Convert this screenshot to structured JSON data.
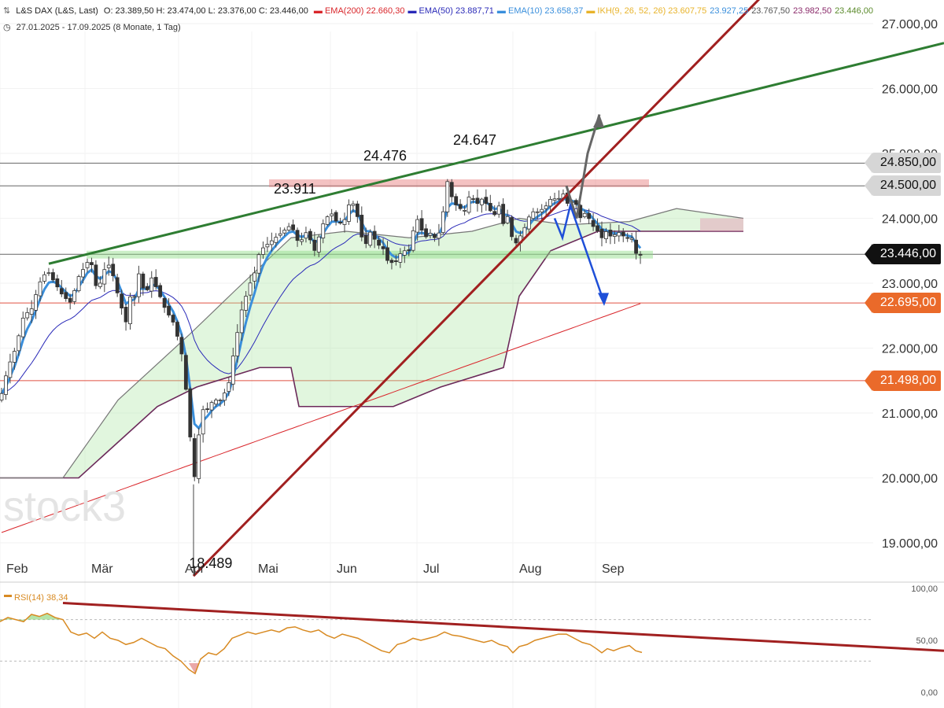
{
  "header": {
    "instrument": "L&S DAX (L&S, Last)",
    "ohlc": "O: 23.389,50  H: 23.474,00  L: 23.376,00  C: 23.446,00",
    "indicators": [
      {
        "label": "EMA(200)",
        "value": "22.660,30",
        "color": "#d9262b"
      },
      {
        "label": "EMA(50)",
        "value": "23.887,71",
        "color": "#2a2ab8"
      },
      {
        "label": "EMA(10)",
        "value": "23.658,37",
        "color": "#3a8fdc"
      },
      {
        "label": "IKH(9, 26, 52, 26)",
        "value": "23.607,75",
        "color": "#e8b32a"
      }
    ],
    "ikh_values": [
      {
        "value": "23.927,25",
        "color": "#3a8fdc"
      },
      {
        "value": "23.767,50",
        "color": "#555555"
      },
      {
        "value": "23.982,50",
        "color": "#8a2a6a"
      },
      {
        "value": "23.446,00",
        "color": "#5a8a2a"
      }
    ],
    "period": "27.01.2025 - 17.09.2025  (8 Monate, 1 Tag)"
  },
  "watermark": "stock3",
  "chart_data": [
    {
      "type": "candlestick",
      "title": "L&S DAX (L&S, Last)",
      "x_labels": [
        "Feb",
        "Mär",
        "Apr",
        "Mai",
        "Jun",
        "Jul",
        "Aug",
        "Sep"
      ],
      "y_ticks": [
        "19.000,00",
        "20.000,00",
        "21.000,00",
        "22.000,00",
        "23.000,00",
        "24.000,00",
        "25.000,00",
        "26.000,00",
        "27.000,00"
      ],
      "ylim": [
        18700,
        27300
      ],
      "price_tags": [
        {
          "value": 24850,
          "label": "24.850,00",
          "style": "grey"
        },
        {
          "value": 24500,
          "label": "24.500,00",
          "style": "grey"
        },
        {
          "value": 23446,
          "label": "23.446,00",
          "style": "black"
        },
        {
          "value": 22695,
          "label": "22.695,00",
          "style": "orange"
        },
        {
          "value": 21498,
          "label": "21.498,00",
          "style": "orange"
        }
      ],
      "annotations": [
        {
          "text": "24.647",
          "x_frac": 0.48,
          "value": 24647
        },
        {
          "text": "24.476",
          "x_frac": 0.385,
          "value": 24476
        },
        {
          "text": "23.911",
          "x_frac": 0.29,
          "value": 23911
        },
        {
          "text": "18.489",
          "x_frac": 0.207,
          "value": 18489
        }
      ],
      "close_anchors": [
        [
          0,
          21200
        ],
        [
          10,
          21700
        ],
        [
          20,
          22000
        ],
        [
          30,
          22500
        ],
        [
          40,
          22600
        ],
        [
          50,
          23000
        ],
        [
          60,
          23200
        ],
        [
          70,
          23000
        ],
        [
          80,
          22800
        ],
        [
          90,
          22700
        ],
        [
          100,
          23100
        ],
        [
          110,
          23300
        ],
        [
          115,
          23400
        ],
        [
          120,
          23000
        ],
        [
          125,
          22900
        ],
        [
          132,
          23200
        ],
        [
          140,
          23300
        ],
        [
          148,
          22900
        ],
        [
          155,
          22600
        ],
        [
          160,
          22400
        ],
        [
          165,
          22800
        ],
        [
          170,
          22700
        ],
        [
          175,
          23200
        ],
        [
          180,
          23000
        ],
        [
          185,
          22800
        ],
        [
          192,
          23100
        ],
        [
          200,
          22900
        ],
        [
          210,
          22600
        ],
        [
          220,
          22400
        ],
        [
          230,
          22000
        ],
        [
          238,
          21200
        ],
        [
          242,
          20600
        ],
        [
          246,
          19800
        ],
        [
          250,
          20500
        ],
        [
          255,
          20800
        ],
        [
          260,
          21200
        ],
        [
          265,
          21000
        ],
        [
          270,
          21200
        ],
        [
          275,
          21200
        ],
        [
          280,
          21200
        ],
        [
          285,
          21300
        ],
        [
          290,
          21400
        ],
        [
          295,
          21800
        ],
        [
          300,
          22100
        ],
        [
          305,
          22500
        ],
        [
          310,
          22700
        ],
        [
          318,
          23000
        ],
        [
          325,
          23200
        ],
        [
          330,
          23500
        ],
        [
          340,
          23600
        ],
        [
          350,
          23700
        ],
        [
          360,
          23800
        ],
        [
          370,
          23900
        ],
        [
          380,
          23600
        ],
        [
          390,
          23800
        ],
        [
          400,
          23500
        ],
        [
          410,
          23900
        ],
        [
          420,
          24100
        ],
        [
          430,
          23900
        ],
        [
          440,
          24000
        ],
        [
          445,
          24300
        ],
        [
          450,
          24200
        ],
        [
          455,
          24000
        ],
        [
          460,
          23700
        ],
        [
          465,
          23600
        ],
        [
          470,
          23800
        ],
        [
          480,
          23600
        ],
        [
          490,
          23500
        ],
        [
          495,
          23200
        ],
        [
          500,
          23400
        ],
        [
          505,
          23300
        ],
        [
          510,
          23500
        ],
        [
          520,
          23500
        ],
        [
          525,
          23800
        ],
        [
          530,
          24000
        ],
        [
          540,
          23700
        ],
        [
          550,
          23800
        ],
        [
          555,
          23600
        ],
        [
          565,
          24200
        ],
        [
          568,
          24600
        ],
        [
          575,
          24300
        ],
        [
          580,
          24200
        ],
        [
          590,
          24100
        ],
        [
          598,
          24400
        ],
        [
          605,
          24200
        ],
        [
          612,
          24300
        ],
        [
          620,
          24200
        ],
        [
          628,
          24000
        ],
        [
          632,
          24300
        ],
        [
          640,
          23900
        ],
        [
          648,
          24100
        ],
        [
          652,
          23500
        ],
        [
          655,
          23600
        ],
        [
          660,
          23700
        ],
        [
          665,
          23800
        ],
        [
          675,
          24100
        ],
        [
          685,
          24100
        ],
        [
          695,
          24200
        ],
        [
          700,
          24300
        ],
        [
          710,
          24300
        ],
        [
          718,
          24400
        ],
        [
          722,
          24200
        ],
        [
          730,
          24300
        ],
        [
          738,
          24000
        ],
        [
          745,
          24100
        ],
        [
          752,
          23900
        ],
        [
          760,
          23800
        ],
        [
          765,
          23700
        ],
        [
          770,
          23800
        ],
        [
          778,
          23700
        ],
        [
          785,
          23800
        ],
        [
          795,
          23700
        ],
        [
          803,
          23700
        ],
        [
          810,
          23400
        ],
        [
          816,
          23446
        ]
      ]
    },
    {
      "type": "line",
      "title": "RSI(14)",
      "series_name": "RSI(14)",
      "last_value": "38,34",
      "y_ticks": [
        "0,00",
        "50,00",
        "100,00"
      ],
      "ylim": [
        0,
        100
      ],
      "points": [
        [
          0,
          68
        ],
        [
          10,
          72
        ],
        [
          20,
          70
        ],
        [
          30,
          68
        ],
        [
          40,
          75
        ],
        [
          50,
          73
        ],
        [
          60,
          76
        ],
        [
          70,
          72
        ],
        [
          80,
          70
        ],
        [
          90,
          58
        ],
        [
          100,
          55
        ],
        [
          110,
          57
        ],
        [
          120,
          52
        ],
        [
          130,
          58
        ],
        [
          140,
          52
        ],
        [
          150,
          50
        ],
        [
          160,
          46
        ],
        [
          170,
          48
        ],
        [
          180,
          52
        ],
        [
          190,
          48
        ],
        [
          200,
          44
        ],
        [
          210,
          42
        ],
        [
          220,
          35
        ],
        [
          230,
          30
        ],
        [
          240,
          22
        ],
        [
          248,
          18
        ],
        [
          255,
          32
        ],
        [
          265,
          38
        ],
        [
          275,
          36
        ],
        [
          285,
          42
        ],
        [
          295,
          52
        ],
        [
          305,
          55
        ],
        [
          315,
          58
        ],
        [
          325,
          56
        ],
        [
          335,
          58
        ],
        [
          345,
          60
        ],
        [
          355,
          58
        ],
        [
          365,
          62
        ],
        [
          375,
          63
        ],
        [
          385,
          60
        ],
        [
          395,
          58
        ],
        [
          405,
          60
        ],
        [
          415,
          55
        ],
        [
          425,
          52
        ],
        [
          435,
          56
        ],
        [
          445,
          54
        ],
        [
          455,
          52
        ],
        [
          465,
          48
        ],
        [
          475,
          44
        ],
        [
          485,
          40
        ],
        [
          495,
          38
        ],
        [
          505,
          46
        ],
        [
          515,
          48
        ],
        [
          525,
          52
        ],
        [
          535,
          50
        ],
        [
          545,
          52
        ],
        [
          555,
          54
        ],
        [
          565,
          58
        ],
        [
          575,
          55
        ],
        [
          585,
          54
        ],
        [
          595,
          52
        ],
        [
          605,
          50
        ],
        [
          615,
          48
        ],
        [
          625,
          50
        ],
        [
          635,
          46
        ],
        [
          645,
          44
        ],
        [
          652,
          38
        ],
        [
          660,
          44
        ],
        [
          670,
          46
        ],
        [
          680,
          50
        ],
        [
          690,
          52
        ],
        [
          700,
          54
        ],
        [
          710,
          56
        ],
        [
          720,
          56
        ],
        [
          730,
          52
        ],
        [
          740,
          48
        ],
        [
          750,
          46
        ],
        [
          758,
          42
        ],
        [
          765,
          38
        ],
        [
          772,
          42
        ],
        [
          780,
          40
        ],
        [
          790,
          43
        ],
        [
          800,
          45
        ],
        [
          808,
          40
        ],
        [
          816,
          38.34
        ]
      ],
      "bands": [
        30,
        70
      ]
    }
  ]
}
